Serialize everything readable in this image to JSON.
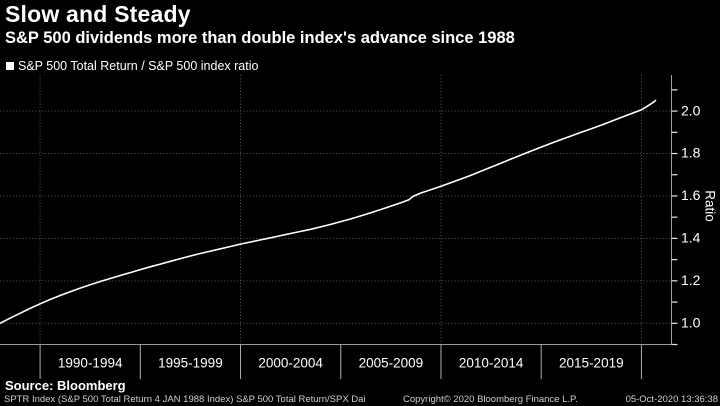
{
  "header": {
    "title": "Slow and Steady",
    "subtitle": "S&P 500 dividends more than double index's advance since 1988"
  },
  "legend": {
    "label": "S&P 500 Total Return / S&P 500 index ratio",
    "marker_color": "#ffffff"
  },
  "source": "Source: Bloomberg",
  "footer": {
    "left_note": "SPTR Index (S&P 500 Total Return 4 JAN 1988 Index) S&P 500 Total Return/SPX  Dai",
    "copyright": "Copyright© 2020 Bloomberg Finance L.P.",
    "timestamp": "05-Oct-2020 13:36:38"
  },
  "colors": {
    "background": "#000000",
    "text": "#ffffff",
    "line": "#ffffff",
    "gridline": "#5a5a5a",
    "axis": "#9a9a9a",
    "tick": "#e6e6e6",
    "divider": "#b0b0b0"
  },
  "chart_data": {
    "type": "line",
    "title": "S&P 500 Total Return / S&P 500 index ratio",
    "xlabel": "",
    "ylabel": "Ratio",
    "y_axis_side": "right",
    "grid": "dotted",
    "legend_position": "top-left",
    "x_range": [
      1988.0,
      2021.5
    ],
    "y_range": [
      0.9,
      2.17
    ],
    "y_major_ticks": [
      1.0,
      1.2,
      1.4,
      1.6,
      1.8,
      2.0
    ],
    "y_minor_tick_min": 0.9,
    "y_minor_tick_max": 2.1,
    "y_minor_step": 0.1,
    "x_gridline_years": [
      1990,
      2000,
      2010,
      2020
    ],
    "x_dividers": [
      1990,
      1995,
      2000,
      2005,
      2010,
      2015,
      2020
    ],
    "x_section_labels": [
      {
        "label": "1990-1994",
        "start": 1990,
        "end": 1995
      },
      {
        "label": "1995-1999",
        "start": 1995,
        "end": 2000
      },
      {
        "label": "2000-2004",
        "start": 2000,
        "end": 2005
      },
      {
        "label": "2005-2009",
        "start": 2005,
        "end": 2010
      },
      {
        "label": "2010-2014",
        "start": 2010,
        "end": 2015
      },
      {
        "label": "2015-2019",
        "start": 2015,
        "end": 2020
      }
    ],
    "series": [
      {
        "name": "S&P 500 Total Return / S&P 500 index ratio",
        "color": "#ffffff",
        "points": [
          [
            1988.0,
            1.0
          ],
          [
            1988.5,
            1.024
          ],
          [
            1989.0,
            1.047
          ],
          [
            1989.5,
            1.07
          ],
          [
            1990.0,
            1.092
          ],
          [
            1990.5,
            1.112
          ],
          [
            1991.0,
            1.131
          ],
          [
            1991.5,
            1.149
          ],
          [
            1992.0,
            1.166
          ],
          [
            1992.5,
            1.182
          ],
          [
            1993.0,
            1.197
          ],
          [
            1993.5,
            1.211
          ],
          [
            1994.0,
            1.225
          ],
          [
            1994.5,
            1.239
          ],
          [
            1995.0,
            1.253
          ],
          [
            1995.5,
            1.266
          ],
          [
            1996.0,
            1.279
          ],
          [
            1996.5,
            1.292
          ],
          [
            1997.0,
            1.305
          ],
          [
            1997.5,
            1.317
          ],
          [
            1998.0,
            1.329
          ],
          [
            1998.5,
            1.34
          ],
          [
            1999.0,
            1.351
          ],
          [
            1999.5,
            1.362
          ],
          [
            2000.0,
            1.373
          ],
          [
            2000.5,
            1.383
          ],
          [
            2001.0,
            1.393
          ],
          [
            2001.5,
            1.403
          ],
          [
            2002.0,
            1.413
          ],
          [
            2002.5,
            1.423
          ],
          [
            2003.0,
            1.433
          ],
          [
            2003.5,
            1.443
          ],
          [
            2004.0,
            1.454
          ],
          [
            2004.5,
            1.466
          ],
          [
            2005.0,
            1.479
          ],
          [
            2005.5,
            1.492
          ],
          [
            2006.0,
            1.506
          ],
          [
            2006.5,
            1.521
          ],
          [
            2007.0,
            1.536
          ],
          [
            2007.5,
            1.552
          ],
          [
            2008.0,
            1.568
          ],
          [
            2008.4,
            1.582
          ],
          [
            2008.6,
            1.598
          ],
          [
            2009.0,
            1.614
          ],
          [
            2009.5,
            1.63
          ],
          [
            2010.0,
            1.646
          ],
          [
            2010.5,
            1.663
          ],
          [
            2011.0,
            1.68
          ],
          [
            2011.5,
            1.698
          ],
          [
            2012.0,
            1.717
          ],
          [
            2012.5,
            1.736
          ],
          [
            2013.0,
            1.755
          ],
          [
            2013.5,
            1.774
          ],
          [
            2014.0,
            1.793
          ],
          [
            2014.5,
            1.812
          ],
          [
            2015.0,
            1.83
          ],
          [
            2015.5,
            1.848
          ],
          [
            2016.0,
            1.866
          ],
          [
            2016.5,
            1.883
          ],
          [
            2017.0,
            1.9
          ],
          [
            2017.5,
            1.917
          ],
          [
            2018.0,
            1.934
          ],
          [
            2018.5,
            1.952
          ],
          [
            2019.0,
            1.97
          ],
          [
            2019.5,
            1.988
          ],
          [
            2020.0,
            2.006
          ],
          [
            2020.3,
            2.023
          ],
          [
            2020.6,
            2.042
          ],
          [
            2020.7,
            2.05
          ]
        ]
      }
    ]
  }
}
